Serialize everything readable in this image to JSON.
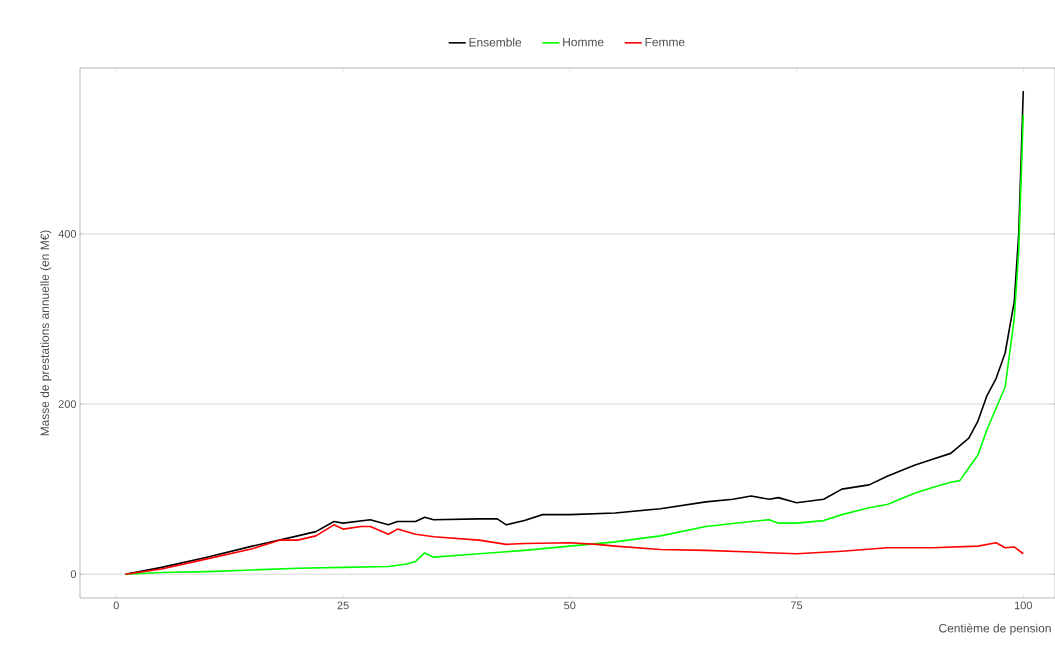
{
  "chart_data": {
    "type": "line",
    "xlabel": "Centième de pension",
    "ylabel": "Masse de prestations annuelle (en M€)",
    "xlim": [
      -4,
      103.5
    ],
    "ylim": [
      -28,
      595
    ],
    "xticks": [
      0,
      25,
      50,
      75,
      100
    ],
    "yticks": [
      0,
      200,
      400
    ],
    "grid": "y",
    "legend": "top",
    "line_style": "solid",
    "marker": "none",
    "series": [
      {
        "name": "Ensemble",
        "color": "#000000",
        "x": [
          1,
          5,
          10,
          15,
          20,
          22,
          24,
          25,
          28,
          30,
          31,
          33,
          34,
          35,
          40,
          42,
          43,
          45,
          47,
          50,
          55,
          60,
          65,
          68,
          70,
          72,
          73,
          75,
          78,
          80,
          83,
          85,
          88,
          90,
          92,
          94,
          95,
          96,
          97,
          98,
          99,
          99.5,
          100
        ],
        "values": [
          0,
          8,
          20,
          33,
          45,
          50,
          62,
          60,
          64,
          58,
          62,
          62,
          67,
          64,
          65,
          65,
          58,
          63,
          70,
          70,
          72,
          77,
          85,
          88,
          92,
          88,
          90,
          84,
          88,
          100,
          105,
          115,
          128,
          135,
          142,
          160,
          180,
          210,
          230,
          260,
          320,
          400,
          568
        ]
      },
      {
        "name": "Homme",
        "color": "#00ff00",
        "x": [
          1,
          5,
          10,
          15,
          20,
          25,
          30,
          32,
          33,
          34,
          35,
          40,
          45,
          50,
          52,
          55,
          60,
          65,
          70,
          72,
          73,
          75,
          78,
          80,
          83,
          85,
          88,
          90,
          92,
          93,
          94,
          95,
          96,
          97,
          98,
          99,
          99.5,
          100
        ],
        "values": [
          0,
          2,
          3,
          5,
          7,
          8,
          9,
          12,
          15,
          25,
          20,
          24,
          28,
          33,
          35,
          38,
          45,
          56,
          62,
          64,
          60,
          60,
          63,
          70,
          78,
          82,
          95,
          102,
          108,
          110,
          125,
          140,
          170,
          195,
          220,
          300,
          380,
          540
        ]
      },
      {
        "name": "Femme",
        "color": "#ff0000",
        "x": [
          1,
          5,
          10,
          15,
          18,
          20,
          22,
          24,
          25,
          27,
          28,
          30,
          31,
          33,
          35,
          40,
          43,
          45,
          50,
          53,
          55,
          60,
          65,
          70,
          75,
          80,
          85,
          90,
          95,
          97,
          98,
          99,
          100
        ],
        "values": [
          0,
          6,
          18,
          30,
          40,
          40,
          45,
          58,
          53,
          56,
          56,
          47,
          53,
          47,
          44,
          40,
          35,
          36,
          37,
          35,
          33,
          29,
          28,
          26,
          24,
          27,
          31,
          31,
          33,
          37,
          31,
          32,
          24
        ]
      }
    ]
  }
}
